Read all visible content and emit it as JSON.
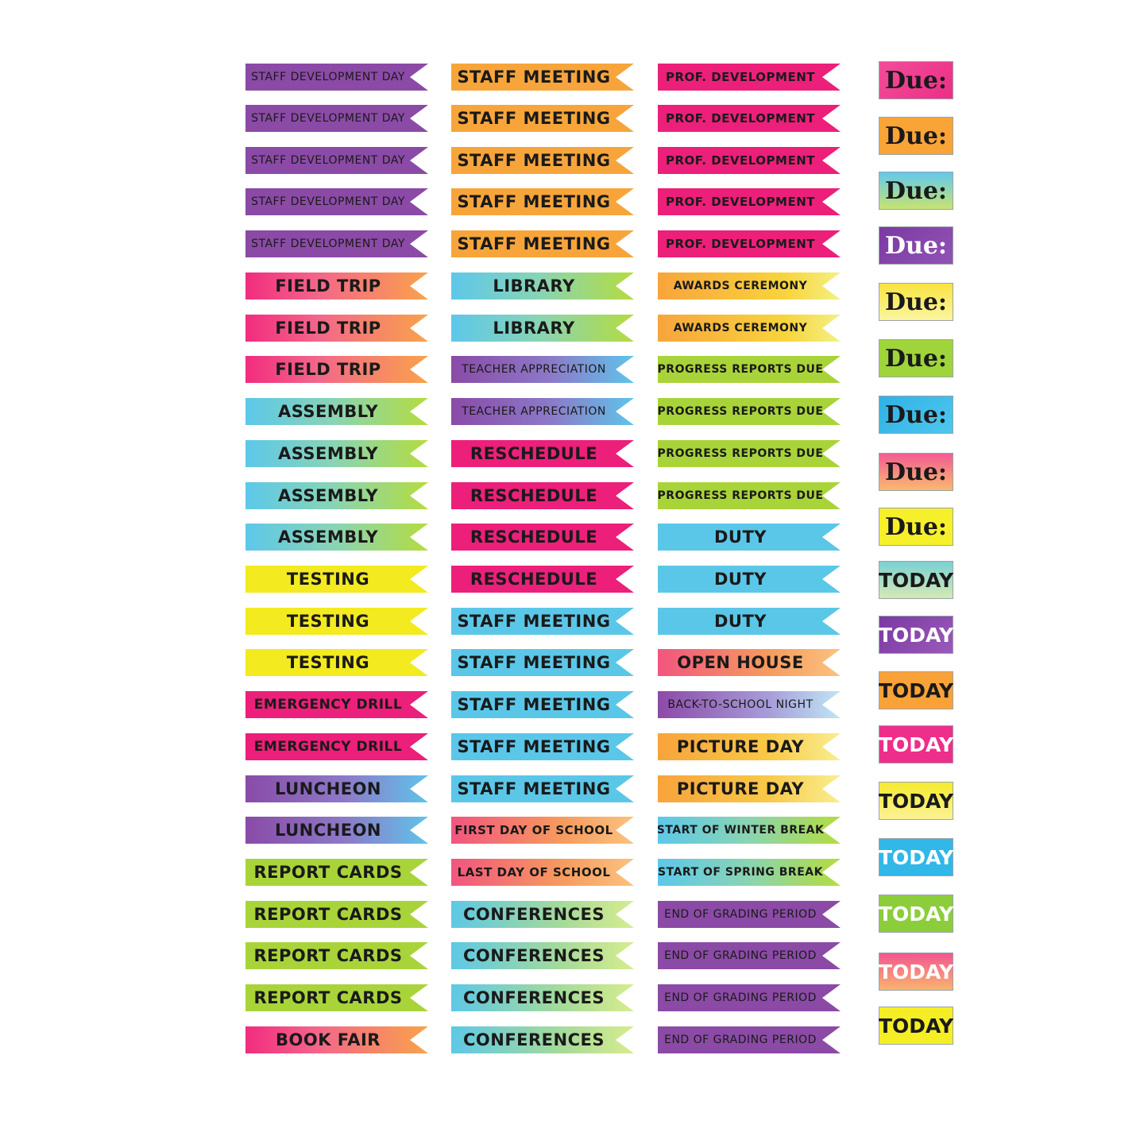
{
  "column1": [
    "STAFF DEVELOPMENT DAY",
    "STAFF DEVELOPMENT DAY",
    "STAFF DEVELOPMENT DAY",
    "STAFF DEVELOPMENT DAY",
    "STAFF DEVELOPMENT DAY",
    "FIELD TRIP",
    "FIELD TRIP",
    "FIELD TRIP",
    "ASSEMBLY",
    "ASSEMBLY",
    "ASSEMBLY",
    "ASSEMBLY",
    "TESTING",
    "TESTING",
    "TESTING",
    "EMERGENCY DRILL",
    "EMERGENCY DRILL",
    "LUNCHEON",
    "LUNCHEON",
    "REPORT CARDS",
    "REPORT CARDS",
    "REPORT CARDS",
    "REPORT CARDS",
    "BOOK FAIR"
  ],
  "column2": [
    "STAFF MEETING",
    "STAFF MEETING",
    "STAFF MEETING",
    "STAFF MEETING",
    "STAFF MEETING",
    "LIBRARY",
    "LIBRARY",
    "TEACHER APPRECIATION",
    "TEACHER APPRECIATION",
    "RESCHEDULE",
    "RESCHEDULE",
    "RESCHEDULE",
    "RESCHEDULE",
    "STAFF MEETING",
    "STAFF MEETING",
    "STAFF MEETING",
    "STAFF MEETING",
    "STAFF MEETING",
    "FIRST DAY OF SCHOOL",
    "LAST DAY OF SCHOOL",
    "CONFERENCES",
    "CONFERENCES",
    "CONFERENCES",
    "CONFERENCES"
  ],
  "column3": [
    "PROF. DEVELOPMENT",
    "PROF. DEVELOPMENT",
    "PROF. DEVELOPMENT",
    "PROF. DEVELOPMENT",
    "PROF. DEVELOPMENT",
    "AWARDS CEREMONY",
    "AWARDS CEREMONY",
    "PROGRESS REPORTS DUE",
    "PROGRESS REPORTS DUE",
    "PROGRESS REPORTS DUE",
    "PROGRESS REPORTS DUE",
    "DUTY",
    "DUTY",
    "DUTY",
    "OPEN HOUSE",
    "BACK-TO-SCHOOL NIGHT",
    "PICTURE DAY",
    "PICTURE DAY",
    "START OF WINTER BREAK",
    "START OF SPRING BREAK",
    "END OF GRADING PERIOD",
    "END OF GRADING PERIOD",
    "END OF GRADING PERIOD",
    "END OF GRADING PERIOD"
  ],
  "column4": [
    "Due:",
    "Due:",
    "Due:",
    "Due:",
    "Due:",
    "Due:",
    "Due:",
    "Due:",
    "Due:",
    "TODAY",
    "TODAY",
    "TODAY",
    "TODAY",
    "TODAY",
    "TODAY",
    "TODAY",
    "TODAY",
    "TODAY"
  ]
}
